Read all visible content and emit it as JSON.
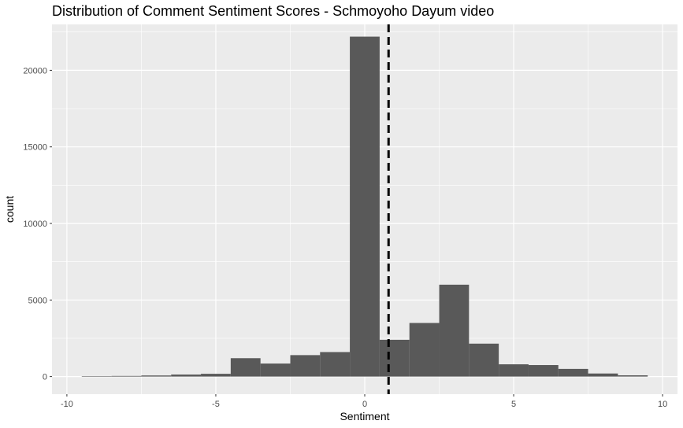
{
  "chart_data": {
    "type": "bar",
    "title": "Distribution of Comment Sentiment Scores - Schmoyoho Dayum video",
    "xlabel": "Sentiment",
    "ylabel": "count",
    "xlim": [
      -10.5,
      10.5
    ],
    "ylim": [
      -1150,
      23000
    ],
    "x_ticks": [
      -10,
      -5,
      0,
      5,
      10
    ],
    "x_tick_labels": [
      "-10",
      "-5",
      "0",
      "5",
      "10"
    ],
    "y_ticks": [
      0,
      5000,
      10000,
      15000,
      20000
    ],
    "y_tick_labels": [
      "0",
      "5000",
      "10000",
      "15000",
      "20000"
    ],
    "grid": true,
    "bin_width": 1,
    "bins": [
      {
        "x": -9,
        "count": 30
      },
      {
        "x": -8,
        "count": 40
      },
      {
        "x": -7,
        "count": 70
      },
      {
        "x": -6,
        "count": 130
      },
      {
        "x": -5,
        "count": 180
      },
      {
        "x": -4,
        "count": 1200
      },
      {
        "x": -3,
        "count": 850
      },
      {
        "x": -2,
        "count": 1400
      },
      {
        "x": -1,
        "count": 1600
      },
      {
        "x": 0,
        "count": 22200
      },
      {
        "x": 1,
        "count": 2400
      },
      {
        "x": 2,
        "count": 3500
      },
      {
        "x": 3,
        "count": 6000
      },
      {
        "x": 4,
        "count": 2150
      },
      {
        "x": 5,
        "count": 800
      },
      {
        "x": 6,
        "count": 750
      },
      {
        "x": 7,
        "count": 500
      },
      {
        "x": 8,
        "count": 200
      },
      {
        "x": 9,
        "count": 80
      }
    ],
    "mean_line": {
      "x": 0.8,
      "style": "dashed",
      "color": "#000000"
    },
    "colors": {
      "panel": "#ebebeb",
      "bar": "#595959",
      "grid": "#ffffff"
    }
  }
}
